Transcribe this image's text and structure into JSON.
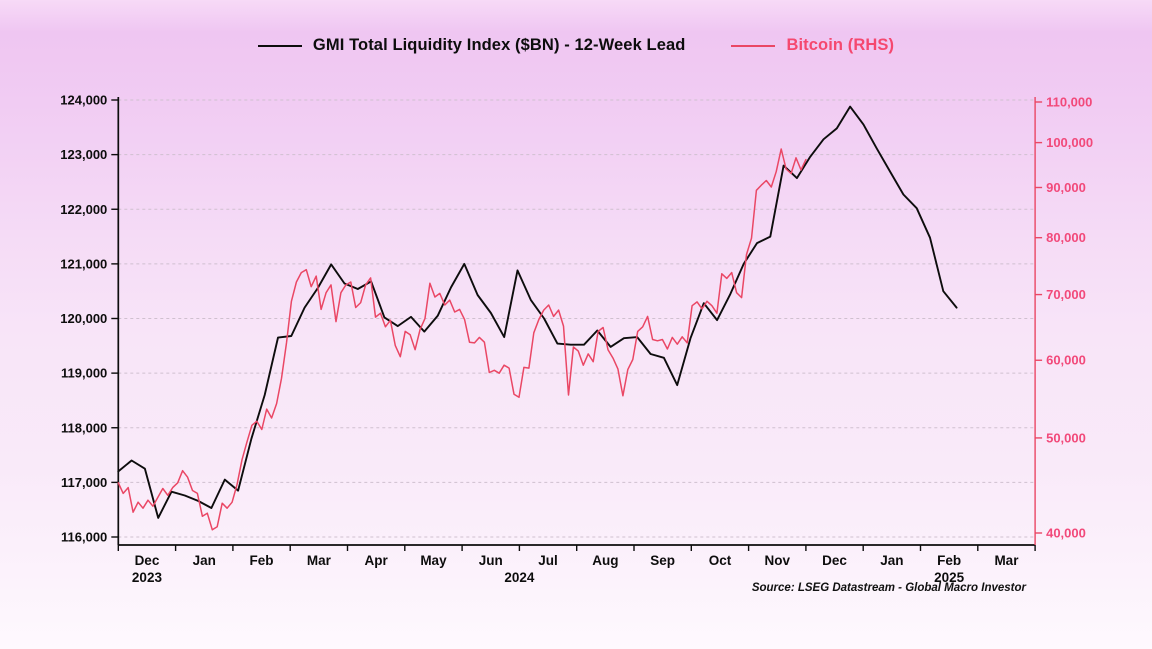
{
  "legend": {
    "items": [
      {
        "label": "GMI Total Liquidity Index ($BN) - 12-Week Lead",
        "color": "#0d0d0d"
      },
      {
        "label": "Bitcoin (RHS)",
        "color": "#f5486f"
      }
    ]
  },
  "chart_data": {
    "type": "line",
    "title": "GMI Total Liquidity Index ($BN) - 12-Week Lead vs Bitcoin (RHS)",
    "source_note": "Source: LSEG Datastream - Global Macro Investor",
    "grid": "horizontal-dashed",
    "legend_position": "top-center",
    "x_axis": {
      "unit": "month",
      "month_labels": [
        "Dec",
        "Jan",
        "Feb",
        "Mar",
        "Apr",
        "May",
        "Jun",
        "Jul",
        "Aug",
        "Sep",
        "Oct",
        "Nov",
        "Dec",
        "Jan",
        "Feb",
        "Mar"
      ],
      "year_labels": [
        {
          "text": "2023",
          "t": 0.5
        },
        {
          "text": "2024",
          "t": 7.0
        },
        {
          "text": "2025",
          "t": 14.5
        }
      ],
      "range_months": [
        0,
        16
      ]
    },
    "left_axis": {
      "scale": "linear",
      "min": 116000,
      "max": 124000,
      "step": 1000,
      "color": "#0d0d0d"
    },
    "right_axis": {
      "scale": "log",
      "ticks": [
        110000,
        100000,
        90000,
        80000,
        70000,
        60000,
        50000,
        40000
      ],
      "top_value": 110000,
      "bottom_value": 40000,
      "color": "#f2497a"
    },
    "series": [
      {
        "name": "GMI Total Liquidity Index ($BN) - 12-Week Lead",
        "axis": "left",
        "color": "#0d0d0d",
        "width": 1.9,
        "t_start": 0,
        "t_end": 14.63,
        "values": [
          117200,
          117400,
          117250,
          116350,
          116830,
          116760,
          116660,
          116530,
          117050,
          116850,
          117800,
          118600,
          119650,
          119680,
          120200,
          120560,
          120990,
          120640,
          120540,
          120680,
          120020,
          119860,
          120030,
          119760,
          120050,
          120570,
          121000,
          120430,
          120100,
          119660,
          120880,
          120340,
          120000,
          119540,
          119520,
          119520,
          119780,
          119480,
          119640,
          119660,
          119350,
          119280,
          118780,
          119640,
          120280,
          119970,
          120450,
          121000,
          121380,
          121500,
          122800,
          122570,
          122960,
          123280,
          123480,
          123880,
          123550,
          123110,
          122690,
          122270,
          122020,
          121480,
          120500,
          120200
        ]
      },
      {
        "name": "Bitcoin (RHS)",
        "axis": "right",
        "color": "#ea4765",
        "width": 1.5,
        "t_start": 0,
        "t_end": 12.0,
        "values": [
          45000,
          43900,
          44500,
          42000,
          43000,
          42400,
          43200,
          42600,
          43500,
          44400,
          43700,
          44500,
          45000,
          46300,
          45600,
          44200,
          43900,
          41600,
          41900,
          40300,
          40600,
          42900,
          42400,
          43000,
          44800,
          47500,
          49500,
          51500,
          52000,
          51000,
          53500,
          52400,
          54200,
          57500,
          62500,
          68900,
          72100,
          73700,
          74200,
          71300,
          73100,
          67600,
          70300,
          71600,
          65700,
          70300,
          71600,
          72100,
          67900,
          68700,
          71600,
          72800,
          66400,
          67000,
          64900,
          65900,
          62100,
          60500,
          64200,
          63700,
          61500,
          64500,
          66200,
          71900,
          69600,
          70200,
          68300,
          69100,
          67200,
          67600,
          66000,
          62600,
          62500,
          63300,
          62600,
          58300,
          58600,
          58200,
          59300,
          58900,
          55400,
          55000,
          59000,
          58900,
          64000,
          66000,
          67500,
          68300,
          66500,
          67500,
          65000,
          55300,
          61900,
          61300,
          59300,
          60900,
          59800,
          64200,
          64800,
          61500,
          60300,
          58800,
          55200,
          58700,
          60100,
          64200,
          64900,
          66500,
          63000,
          62800,
          63000,
          61600,
          63300,
          62300,
          63400,
          62500,
          68200,
          68800,
          67700,
          68900,
          68200,
          67000,
          73500,
          72700,
          73700,
          70300,
          69500,
          76900,
          79900,
          89400,
          90500,
          91500,
          90100,
          93400,
          98500,
          94000,
          93000,
          96500,
          93800,
          96100
        ]
      }
    ]
  }
}
